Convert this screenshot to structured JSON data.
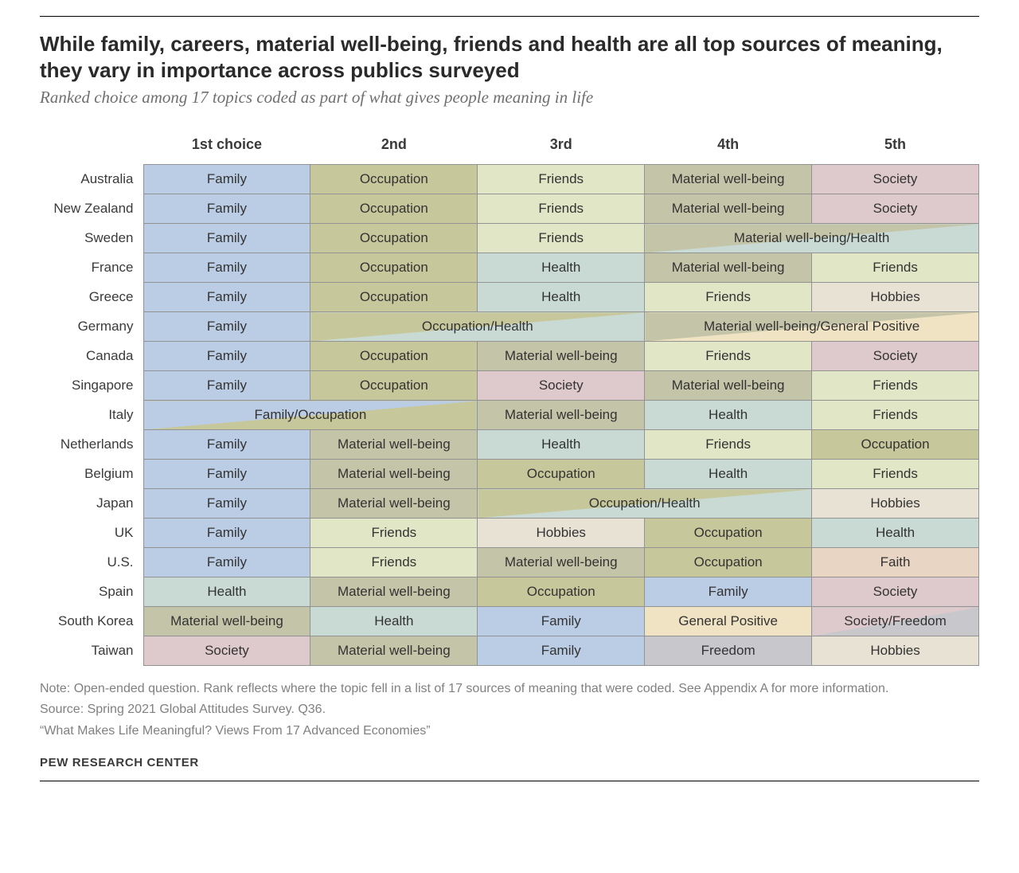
{
  "headline": "While family, careers, material well-being, friends and health are all top sources of meaning, they vary in importance across publics surveyed",
  "subhead": "Ranked choice among 17 topics coded as part of what gives people meaning in life",
  "columns": [
    "1st choice",
    "2nd",
    "3rd",
    "4th",
    "5th"
  ],
  "colors": {
    "family": "#bbcde5",
    "occupation": "#c6c79a",
    "friends": "#e1e6c6",
    "material": "#c4c4a8",
    "society": "#dec9cd",
    "health": "#c9dad4",
    "hobbies": "#e8e2d4",
    "general_positive": "#f0e3c3",
    "faith": "#e9d5c4",
    "freedom": "#c7c7cc",
    "border": "#929292",
    "text": "#3a3a3a"
  },
  "categories": {
    "Family": "family",
    "Occupation": "occupation",
    "Friends": "friends",
    "Material well-being": "material",
    "Society": "society",
    "Health": "health",
    "Hobbies": "hobbies",
    "General Positive": "general_positive",
    "Faith": "faith",
    "Freedom": "freedom"
  },
  "rows": [
    {
      "country": "Australia",
      "cells": [
        {
          "label": "Family"
        },
        {
          "label": "Occupation"
        },
        {
          "label": "Friends"
        },
        {
          "label": "Material well-being"
        },
        {
          "label": "Society"
        }
      ]
    },
    {
      "country": "New Zealand",
      "cells": [
        {
          "label": "Family"
        },
        {
          "label": "Occupation"
        },
        {
          "label": "Friends"
        },
        {
          "label": "Material well-being"
        },
        {
          "label": "Society"
        }
      ]
    },
    {
      "country": "Sweden",
      "cells": [
        {
          "label": "Family"
        },
        {
          "label": "Occupation"
        },
        {
          "label": "Friends"
        },
        {
          "label": "Material well-being/Health",
          "span": 2,
          "split": [
            "Material well-being",
            "Health"
          ]
        }
      ]
    },
    {
      "country": "France",
      "cells": [
        {
          "label": "Family"
        },
        {
          "label": "Occupation"
        },
        {
          "label": "Health"
        },
        {
          "label": "Material well-being"
        },
        {
          "label": "Friends"
        }
      ]
    },
    {
      "country": "Greece",
      "cells": [
        {
          "label": "Family"
        },
        {
          "label": "Occupation"
        },
        {
          "label": "Health"
        },
        {
          "label": "Friends"
        },
        {
          "label": "Hobbies"
        }
      ]
    },
    {
      "country": "Germany",
      "cells": [
        {
          "label": "Family"
        },
        {
          "label": "Occupation/Health",
          "span": 2,
          "split": [
            "Occupation",
            "Health"
          ]
        },
        {
          "label": "Material well-being/General Positive",
          "span": 2,
          "split": [
            "Material well-being",
            "General Positive"
          ]
        }
      ]
    },
    {
      "country": "Canada",
      "cells": [
        {
          "label": "Family"
        },
        {
          "label": "Occupation"
        },
        {
          "label": "Material well-being"
        },
        {
          "label": "Friends"
        },
        {
          "label": "Society"
        }
      ]
    },
    {
      "country": "Singapore",
      "cells": [
        {
          "label": "Family"
        },
        {
          "label": "Occupation"
        },
        {
          "label": "Society"
        },
        {
          "label": "Material well-being"
        },
        {
          "label": "Friends"
        }
      ]
    },
    {
      "country": "Italy",
      "cells": [
        {
          "label": "Family/Occupation",
          "span": 2,
          "split": [
            "Family",
            "Occupation"
          ]
        },
        {
          "label": "Material well-being"
        },
        {
          "label": "Health"
        },
        {
          "label": "Friends"
        }
      ]
    },
    {
      "country": "Netherlands",
      "cells": [
        {
          "label": "Family"
        },
        {
          "label": "Material well-being"
        },
        {
          "label": "Health"
        },
        {
          "label": "Friends"
        },
        {
          "label": "Occupation"
        }
      ]
    },
    {
      "country": "Belgium",
      "cells": [
        {
          "label": "Family"
        },
        {
          "label": "Material well-being"
        },
        {
          "label": "Occupation"
        },
        {
          "label": "Health"
        },
        {
          "label": "Friends"
        }
      ]
    },
    {
      "country": "Japan",
      "cells": [
        {
          "label": "Family"
        },
        {
          "label": "Material well-being"
        },
        {
          "label": "Occupation/Health",
          "span": 2,
          "split": [
            "Occupation",
            "Health"
          ]
        },
        {
          "label": "Hobbies"
        }
      ]
    },
    {
      "country": "UK",
      "cells": [
        {
          "label": "Family"
        },
        {
          "label": "Friends"
        },
        {
          "label": "Hobbies"
        },
        {
          "label": "Occupation"
        },
        {
          "label": "Health"
        }
      ]
    },
    {
      "country": "U.S.",
      "cells": [
        {
          "label": "Family"
        },
        {
          "label": "Friends"
        },
        {
          "label": "Material well-being"
        },
        {
          "label": "Occupation"
        },
        {
          "label": "Faith"
        }
      ]
    },
    {
      "country": "Spain",
      "cells": [
        {
          "label": "Health"
        },
        {
          "label": "Material well-being"
        },
        {
          "label": "Occupation"
        },
        {
          "label": "Family"
        },
        {
          "label": "Society"
        }
      ]
    },
    {
      "country": "South Korea",
      "cells": [
        {
          "label": "Material well-being"
        },
        {
          "label": "Health"
        },
        {
          "label": "Family"
        },
        {
          "label": "General Positive"
        },
        {
          "label": "Society/Freedom",
          "split": [
            "Society",
            "Freedom"
          ]
        }
      ]
    },
    {
      "country": "Taiwan",
      "cells": [
        {
          "label": "Society"
        },
        {
          "label": "Material well-being"
        },
        {
          "label": "Family"
        },
        {
          "label": "Freedom"
        },
        {
          "label": "Hobbies"
        }
      ]
    }
  ],
  "note": "Note: Open-ended question. Rank reflects where the topic fell in a list of 17 sources of meaning that were coded. See Appendix A for more information.",
  "source": "Source: Spring 2021 Global Attitudes Survey. Q36.",
  "report": "“What Makes Life Meaningful? Views From 17 Advanced Economies”",
  "brand": "PEW RESEARCH CENTER"
}
